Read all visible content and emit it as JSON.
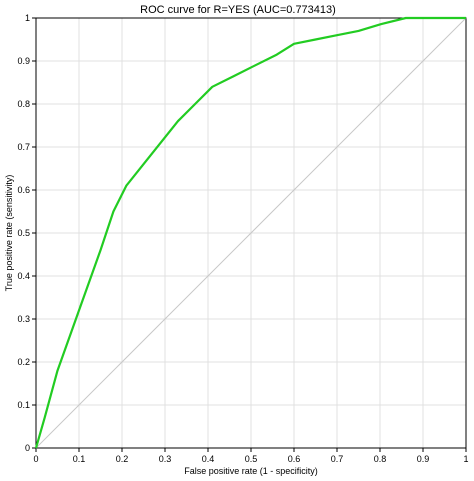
{
  "chart_data": {
    "type": "line",
    "title": "ROC curve for R=YES (AUC=0.773413)",
    "xlabel": "False positive rate (1 - specificity)",
    "ylabel": "True positive rate (sensitivity)",
    "xlim": [
      0,
      1
    ],
    "ylim": [
      0,
      1
    ],
    "xticks": [
      "0",
      "0.1",
      "0.2",
      "0.3",
      "0.4",
      "0.5",
      "0.6",
      "0.7",
      "0.8",
      "0.9",
      "1"
    ],
    "yticks": [
      "0",
      "0.1",
      "0.2",
      "0.3",
      "0.4",
      "0.5",
      "0.6",
      "0.7",
      "0.8",
      "0.9",
      "1"
    ],
    "grid": true,
    "series": [
      {
        "color": "#22cc22",
        "x": [
          0.0,
          0.02,
          0.05,
          0.1,
          0.15,
          0.18,
          0.21,
          0.25,
          0.29,
          0.33,
          0.37,
          0.41,
          0.46,
          0.51,
          0.56,
          0.6,
          0.65,
          0.7,
          0.75,
          0.8,
          0.86,
          0.9,
          0.95,
          1.0
        ],
        "y": [
          0.0,
          0.07,
          0.18,
          0.32,
          0.46,
          0.55,
          0.61,
          0.66,
          0.71,
          0.76,
          0.8,
          0.84,
          0.865,
          0.89,
          0.915,
          0.94,
          0.95,
          0.96,
          0.97,
          0.985,
          1.0,
          1.0,
          1.0,
          1.0
        ]
      },
      {
        "color": "#c8c8c8",
        "x": [
          0,
          1
        ],
        "y": [
          0,
          1
        ]
      }
    ]
  }
}
